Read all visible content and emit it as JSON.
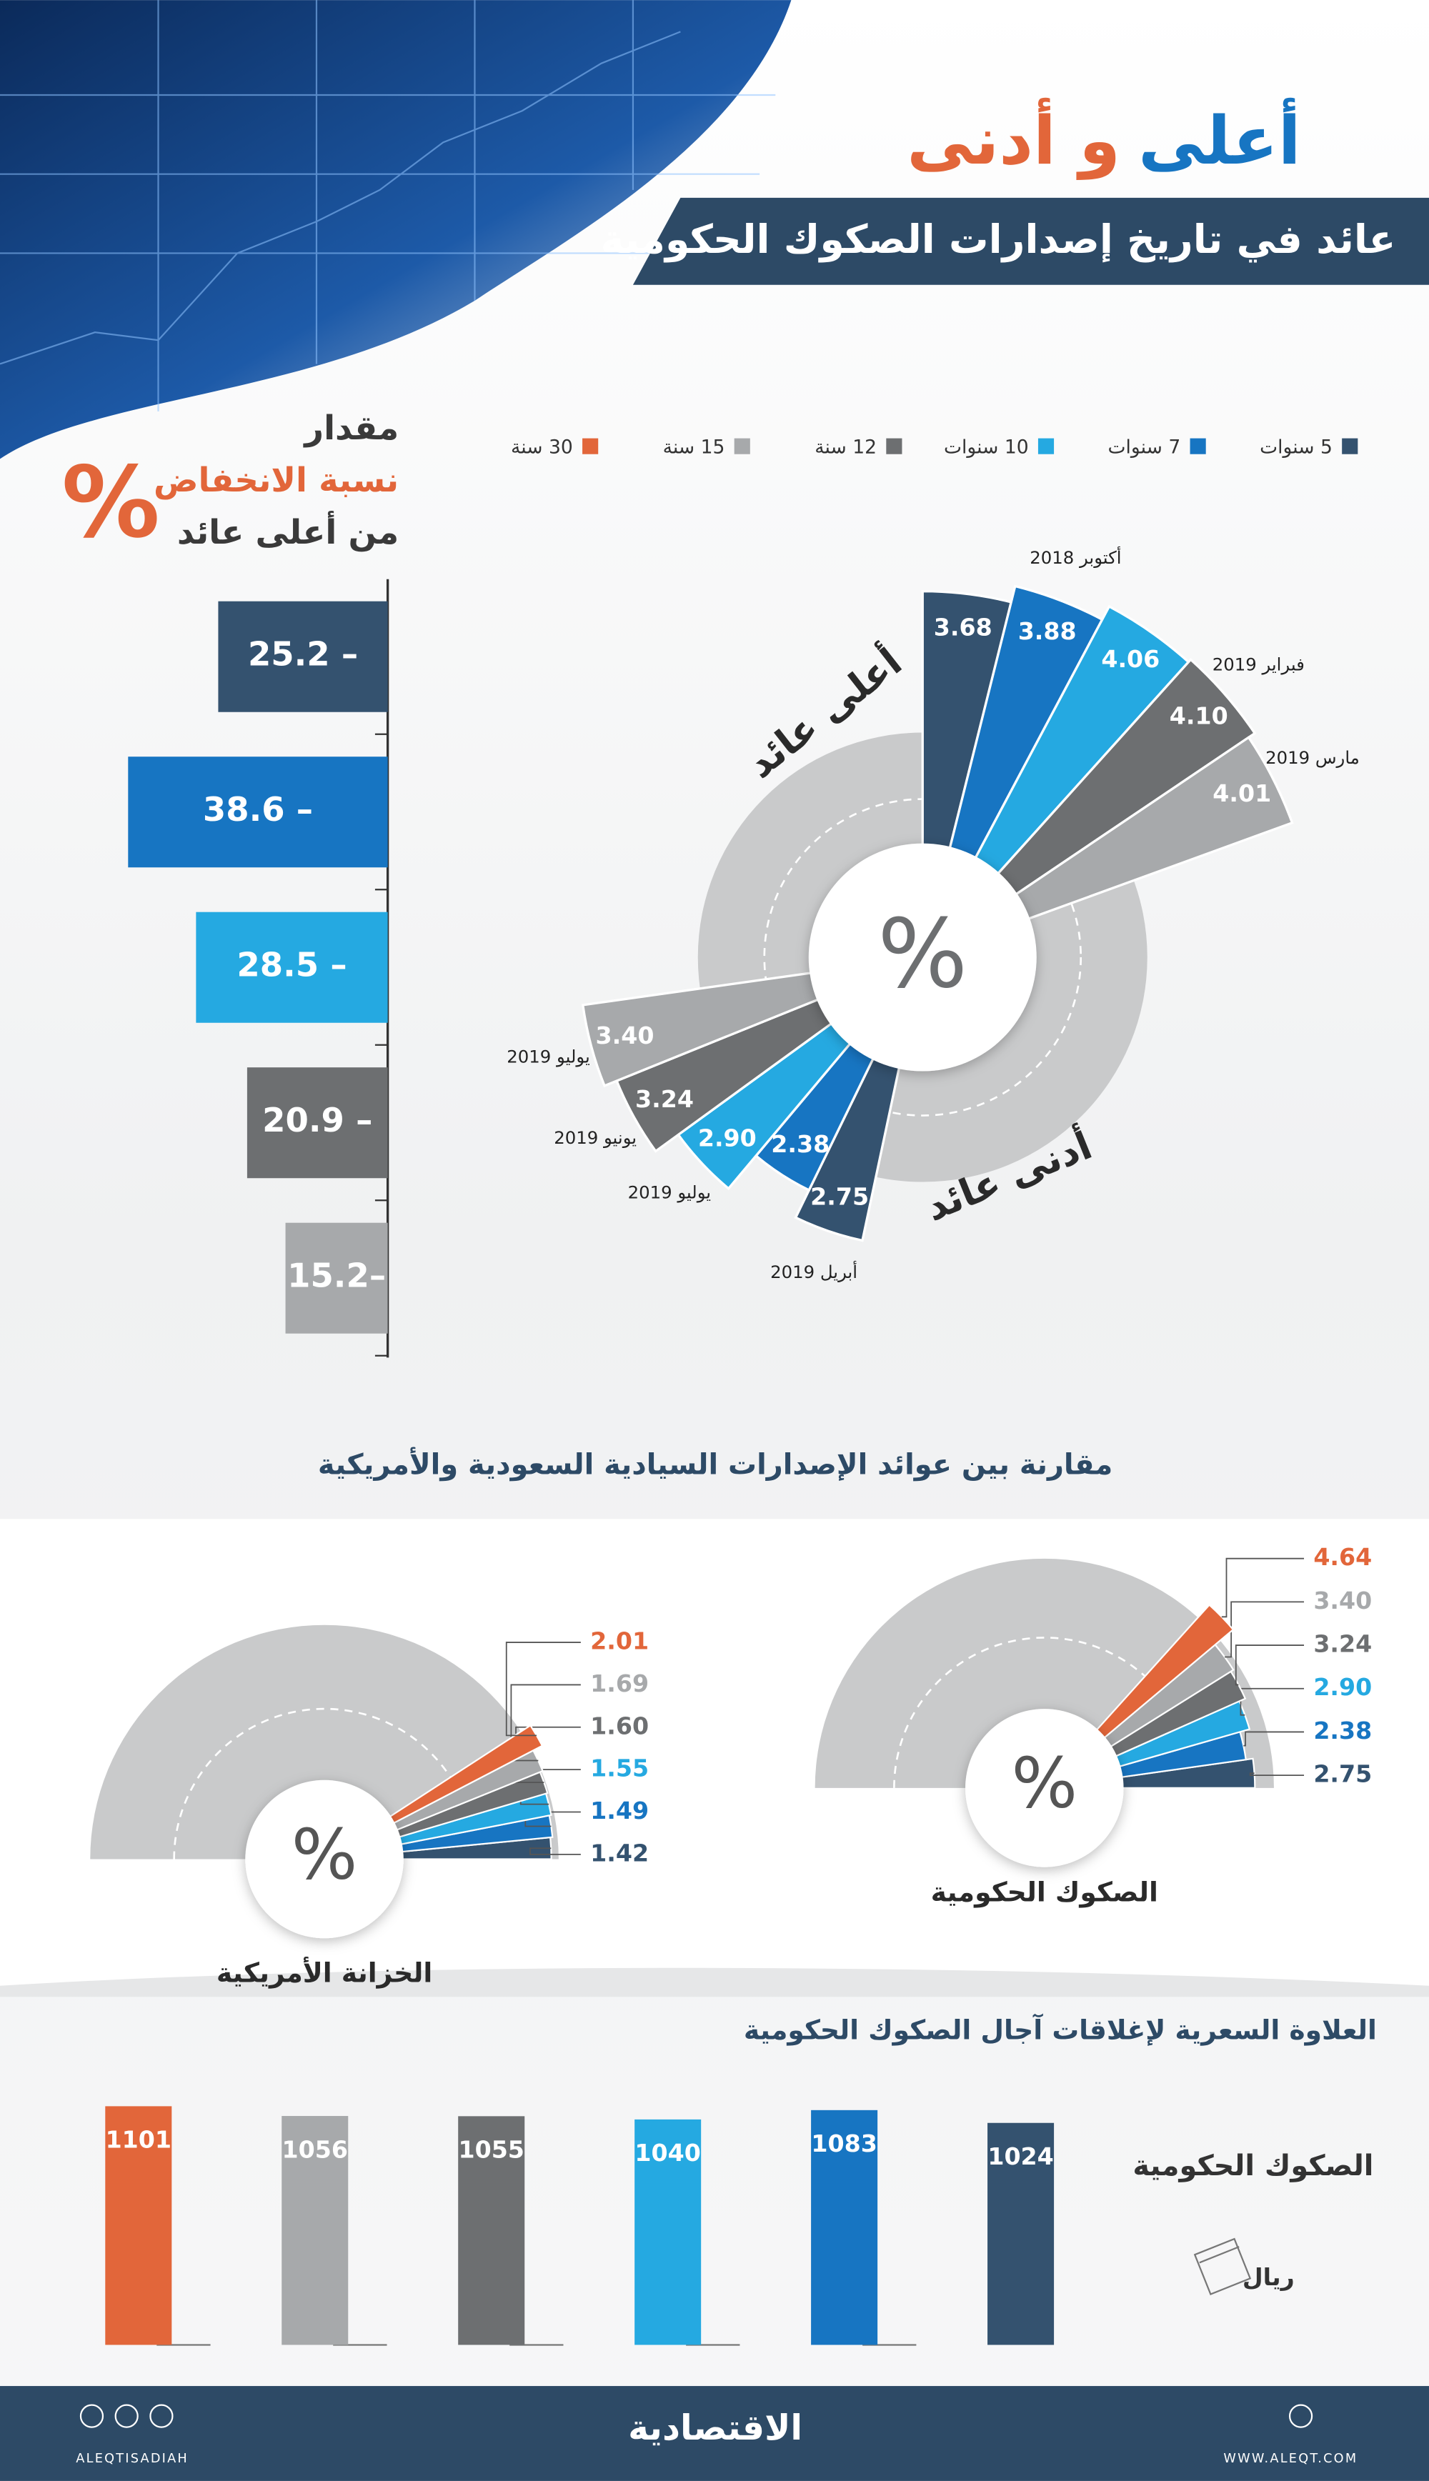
{
  "header": {
    "title_parts": [
      "أعلى",
      "و أدنى"
    ],
    "subtitle": "عائد في تاريخ إصدارات الصكوك الحكومية"
  },
  "legend": [
    {
      "name": "5 سنوات",
      "color": "#34526f"
    },
    {
      "name": "7 سنوات",
      "color": "#1775c2"
    },
    {
      "name": "10 سنوات",
      "color": "#25a9e1"
    },
    {
      "name": "12 سنة",
      "color": "#6d6f71"
    },
    {
      "name": "15 سنة",
      "color": "#a7a9ab"
    },
    {
      "name": "30 سنة",
      "color": "#e2663a"
    }
  ],
  "chart_data": [
    {
      "type": "hbar",
      "title_lines": [
        "مقدار",
        "نسبة الانخفاض",
        "من أعلى عائد"
      ],
      "symbol": "%",
      "values": [
        -25.2,
        -38.6,
        -28.5,
        -20.9,
        -15.2
      ],
      "value_labels": [
        "25.2 –",
        "38.6 –",
        "28.5 –",
        "20.9 –",
        "15.2–"
      ],
      "xlim": [
        -50,
        0
      ]
    },
    {
      "type": "rose",
      "symbol": "%",
      "high": {
        "label": "أعلى عائد",
        "values": [
          3.68,
          3.88,
          4.06,
          4.1,
          4.01
        ],
        "value_labels": [
          "3.68",
          "3.88",
          "4.06",
          "4.10",
          "4.01"
        ],
        "dates": [
          null,
          "أكتوبر 2018",
          null,
          "فبراير 2019",
          "مارس 2019"
        ]
      },
      "low": {
        "label": "أدنى عائد",
        "values": [
          2.75,
          2.38,
          2.9,
          3.24,
          3.4
        ],
        "value_labels": [
          "2.75",
          "2.38",
          "2.90",
          "3.24",
          "3.40"
        ],
        "dates": [
          "أبريل 2019",
          null,
          "يوليو 2019",
          "يونيو 2019",
          "يوليو 2019"
        ]
      }
    },
    {
      "type": "semi-rose",
      "title": "مقارنة بين عوائد الإصدارات السيادية السعودية والأمريكية",
      "symbol": "%",
      "series": [
        {
          "name": "الصكوك الحكومية",
          "values": [
            2.75,
            2.38,
            2.9,
            3.24,
            3.4,
            4.64
          ],
          "value_labels": [
            "2.75",
            "2.38",
            "2.90",
            "3.24",
            "3.40",
            "4.64"
          ]
        },
        {
          "name": "الخزانة الأمريكية",
          "values": [
            1.42,
            1.49,
            1.55,
            1.6,
            1.69,
            2.01
          ],
          "value_labels": [
            "1.42",
            "1.49",
            "1.55",
            "1.60",
            "1.69",
            "2.01"
          ]
        }
      ]
    },
    {
      "type": "bar",
      "title": "العلاوة السعرية لإغلاقات آجال الصكوك الحكومية",
      "series_name": "الصكوك الحكومية",
      "unit": "ريال",
      "values": [
        1024,
        1083,
        1040,
        1055,
        1056,
        1101
      ]
    }
  ],
  "footer": {
    "brand": "الاقتصادية",
    "handle": "ALEQTISADIAH",
    "site": "WWW.ALEQT.COM"
  }
}
